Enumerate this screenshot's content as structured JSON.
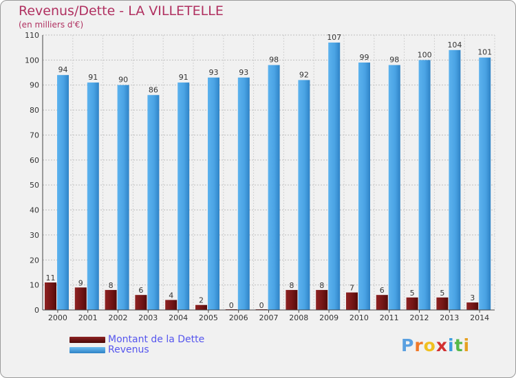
{
  "colors": {
    "revenus": "#4aa3e4",
    "revenus_dark": "#2b7dc0",
    "dette": "#7a1a1a",
    "dette_dark": "#5a0c0c",
    "title": "#b03060",
    "legend_text": "#5555ee"
  },
  "header": {
    "title": "Revenus/Dette - LA VILLETELLE",
    "subtitle": "(en milliers d'€)"
  },
  "legend": {
    "items": [
      {
        "label": "Montant de la Dette",
        "color": "#6b1010"
      },
      {
        "label": "Revenus",
        "color": "#3e97dc"
      }
    ]
  },
  "logo": {
    "letters": [
      "P",
      "r",
      "o",
      "x",
      "i",
      "t",
      "i"
    ],
    "letter_colors": [
      "#5aa0e0",
      "#f07828",
      "#f0c020",
      "#d23030",
      "#3c9de0",
      "#56b848",
      "#e6a020"
    ]
  },
  "chart_data": {
    "type": "bar",
    "title": "Revenus/Dette - LA VILLETELLE",
    "subtitle": "(en milliers d'€)",
    "categories": [
      "2000",
      "2001",
      "2002",
      "2003",
      "2004",
      "2005",
      "2006",
      "2007",
      "2008",
      "2009",
      "2010",
      "2011",
      "2012",
      "2013",
      "2014"
    ],
    "series": [
      {
        "name": "Montant de la Dette",
        "values": [
          11,
          9,
          8,
          6,
          4,
          2,
          0,
          0,
          8,
          8,
          7,
          6,
          5,
          5,
          3
        ]
      },
      {
        "name": "Revenus",
        "values": [
          94,
          91,
          90,
          86,
          91,
          93,
          93,
          98,
          92,
          107,
          99,
          98,
          100,
          104,
          101
        ]
      }
    ],
    "ylim": [
      0,
      110
    ],
    "yticks": [
      0,
      10,
      20,
      30,
      40,
      50,
      60,
      70,
      80,
      90,
      100,
      110
    ],
    "grid": true,
    "legend_position": "bottom-left"
  }
}
